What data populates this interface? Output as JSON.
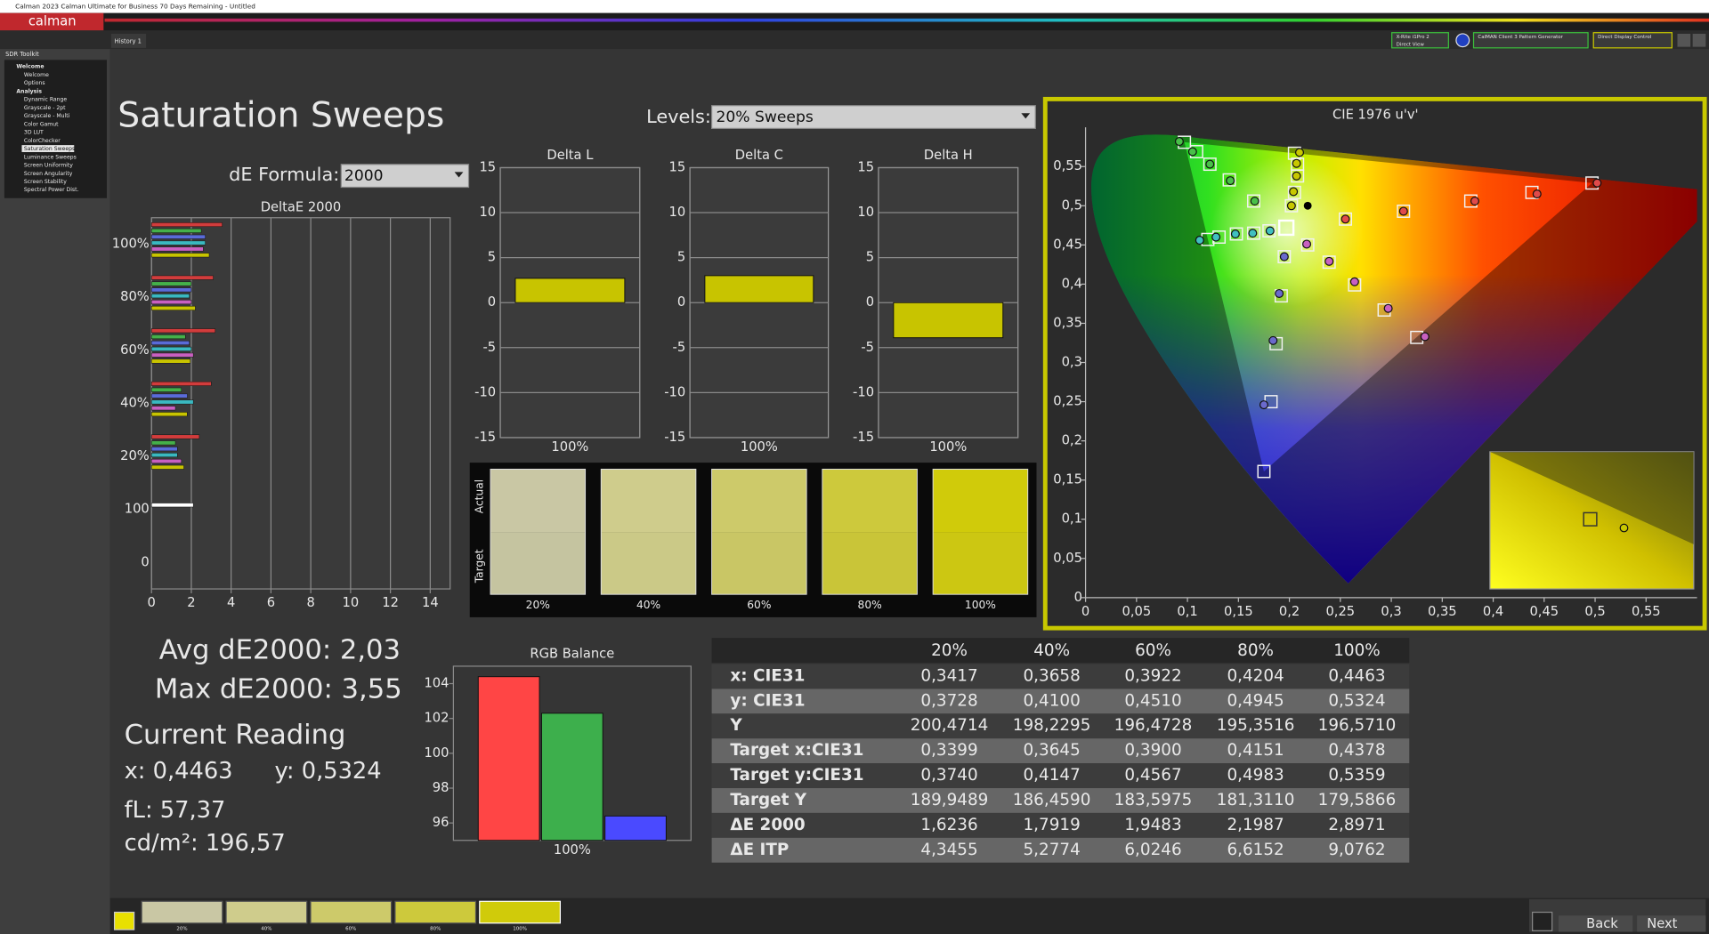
{
  "window": {
    "title": "Calman 2023 Calman Ultimate for Business 70 Days Remaining  - Untitled",
    "logo": "calman"
  },
  "toolbar": {
    "tab": "History 1",
    "meter": "X-Rite i1Pro 2",
    "meter_mode": "Direct View",
    "generator": "CalMAN Client 3 Pattern Generator",
    "display": "Direct Display Control"
  },
  "sidebar": {
    "title": "SDR Toolkit",
    "groups": [
      {
        "title": "Welcome",
        "items": [
          "Welcome",
          "Options"
        ]
      },
      {
        "title": "Analysis",
        "items": [
          "Dynamic Range",
          "Grayscale - 2pt",
          "Grayscale - Multi",
          "Color Gamut",
          "3D LUT",
          "ColorChecker",
          "Saturation Sweeps",
          "Luminance Sweeps",
          "Screen Uniformity",
          "Screen Angularity",
          "Screen Stability",
          "Spectral Power Dist."
        ]
      }
    ]
  },
  "page": {
    "title": "Saturation Sweeps",
    "levels_label": "Levels:",
    "levels_value": "20% Sweeps",
    "formula_label": "dE Formula:",
    "formula_value": "2000"
  },
  "deltae_chart": {
    "type": "bar",
    "orientation": "horizontal",
    "title": "DeltaE 2000",
    "categories": [
      "100%",
      "80%",
      "60%",
      "40%",
      "20%",
      "100",
      "0"
    ],
    "series": [
      {
        "color": "#d23c3c",
        "values": [
          3.55,
          3.1,
          3.2,
          3.0,
          2.4,
          null,
          null
        ]
      },
      {
        "color": "#45b04a",
        "values": [
          2.5,
          2.0,
          1.7,
          1.5,
          1.2,
          null,
          null
        ]
      },
      {
        "color": "#5a6bd8",
        "values": [
          2.7,
          2.0,
          1.9,
          1.8,
          1.3,
          null,
          null
        ]
      },
      {
        "color": "#3ab8c0",
        "values": [
          2.7,
          1.9,
          2.0,
          2.1,
          1.3,
          null,
          null
        ]
      },
      {
        "color": "#c860c0",
        "values": [
          2.6,
          2.0,
          2.1,
          1.2,
          1.5,
          null,
          null
        ]
      },
      {
        "color": "#c8c400",
        "values": [
          2.8971,
          2.1987,
          1.9483,
          1.7919,
          1.6236,
          null,
          null
        ]
      },
      {
        "color": "#ffffff",
        "values": [
          null,
          null,
          null,
          null,
          null,
          2.1,
          null
        ]
      }
    ],
    "xlim": [
      0,
      15
    ],
    "xticks": [
      0,
      2,
      4,
      6,
      8,
      10,
      12,
      14
    ],
    "grid": true
  },
  "delta_charts": [
    {
      "type": "bar",
      "title": "Delta L",
      "categories": [
        "100%"
      ],
      "values": [
        2.7
      ],
      "color": "#c8c400",
      "ylim": [
        -15,
        15
      ],
      "yticks": [
        -15,
        -10,
        -5,
        0,
        5,
        10,
        15
      ],
      "grid": true
    },
    {
      "type": "bar",
      "title": "Delta C",
      "categories": [
        "100%"
      ],
      "values": [
        3.0
      ],
      "color": "#c8c400",
      "ylim": [
        -15,
        15
      ],
      "yticks": [
        -15,
        -10,
        -5,
        0,
        5,
        10,
        15
      ],
      "grid": true
    },
    {
      "type": "bar",
      "title": "Delta H",
      "categories": [
        "100%"
      ],
      "values": [
        -3.9
      ],
      "color": "#c8c400",
      "ylim": [
        -15,
        15
      ],
      "yticks": [
        -15,
        -10,
        -5,
        0,
        5,
        10,
        15
      ],
      "grid": true
    }
  ],
  "swatches": {
    "row_labels": [
      "Actual",
      "Target"
    ],
    "categories": [
      "20%",
      "40%",
      "60%",
      "80%",
      "100%"
    ],
    "actual_colors": [
      "#c9c7a4",
      "#cfcc8c",
      "#cdca6a",
      "#cdc93c",
      "#d0cb0a"
    ],
    "target_colors": [
      "#c5c4a0",
      "#cbc987",
      "#c9c665",
      "#c9c538",
      "#ccc712"
    ]
  },
  "cie_chart": {
    "type": "scatter",
    "title": "CIE 1976 u'v'",
    "xlim": [
      0,
      0.6
    ],
    "ylim": [
      0,
      0.6
    ],
    "xticks": [
      0,
      {
        "value": 0.05,
        "label": "0,05"
      },
      {
        "value": 0.1,
        "label": "0,1"
      },
      {
        "value": 0.15,
        "label": "0,15"
      },
      {
        "value": 0.2,
        "label": "0,2"
      },
      {
        "value": 0.25,
        "label": "0,25"
      },
      {
        "value": 0.3,
        "label": "0,3"
      },
      {
        "value": 0.35,
        "label": "0,35"
      },
      {
        "value": 0.4,
        "label": "0,4"
      },
      {
        "value": 0.45,
        "label": "0,45"
      },
      {
        "value": 0.5,
        "label": "0,5"
      },
      {
        "value": 0.55,
        "label": "0,55"
      }
    ],
    "yticks": [
      0,
      {
        "value": 0.05,
        "label": "0,05"
      },
      {
        "value": 0.1,
        "label": "0,1"
      },
      {
        "value": 0.15,
        "label": "0,15"
      },
      {
        "value": 0.2,
        "label": "0,2"
      },
      {
        "value": 0.25,
        "label": "0,25"
      },
      {
        "value": 0.3,
        "label": "0,3"
      },
      {
        "value": 0.35,
        "label": "0,35"
      },
      {
        "value": 0.4,
        "label": "0,4"
      },
      {
        "value": 0.45,
        "label": "0,45"
      },
      {
        "value": 0.5,
        "label": "0,5"
      },
      {
        "value": 0.55,
        "label": "0,55"
      }
    ],
    "series": [
      {
        "color": "#e04a4a",
        "target_u": [
          0.255,
          0.312,
          0.378,
          0.438,
          0.497
        ],
        "target_v": [
          0.483,
          0.493,
          0.506,
          0.517,
          0.529
        ],
        "actual_u": [
          0.255,
          0.312,
          0.382,
          0.443,
          0.502
        ],
        "actual_v": [
          0.483,
          0.493,
          0.506,
          0.515,
          0.529
        ]
      },
      {
        "color": "#48c048",
        "target_u": [
          0.165,
          0.141,
          0.122,
          0.109,
          0.097
        ],
        "target_v": [
          0.506,
          0.533,
          0.553,
          0.569,
          0.581
        ],
        "actual_u": [
          0.166,
          0.142,
          0.122,
          0.105,
          0.092
        ],
        "actual_v": [
          0.506,
          0.532,
          0.553,
          0.569,
          0.582
        ]
      },
      {
        "color": "#6a6acc",
        "target_u": [
          0.195,
          0.192,
          0.187,
          0.182,
          0.175
        ],
        "target_v": [
          0.435,
          0.385,
          0.324,
          0.25,
          0.161
        ],
        "actual_u": [
          0.195,
          0.19,
          0.184,
          0.175,
          null
        ],
        "actual_v": [
          0.435,
          0.388,
          0.328,
          0.246,
          null
        ]
      },
      {
        "color": "#40c0c0",
        "target_u": [
          0.18,
          0.165,
          0.148,
          0.131,
          0.12
        ],
        "target_v": [
          0.468,
          0.465,
          0.464,
          0.46,
          0.457
        ],
        "actual_u": [
          0.181,
          0.164,
          0.147,
          0.128,
          0.112
        ],
        "actual_v": [
          0.468,
          0.465,
          0.464,
          0.46,
          0.456
        ]
      },
      {
        "color": "#c860c0",
        "target_u": [
          0.218,
          0.239,
          0.264,
          0.293,
          0.325
        ],
        "target_v": [
          0.45,
          0.428,
          0.399,
          0.367,
          0.332
        ],
        "actual_u": [
          0.217,
          0.239,
          0.264,
          0.297,
          0.333
        ],
        "actual_v": [
          0.451,
          0.429,
          0.403,
          0.369,
          0.333
        ]
      },
      {
        "color": "#c8c800",
        "target_u": [
          0.202,
          0.205,
          0.208,
          0.208,
          0.205
        ],
        "target_v": [
          0.5,
          0.517,
          0.538,
          0.553,
          0.567
        ],
        "actual_u": [
          0.202,
          0.204,
          0.207,
          0.207,
          0.21
        ],
        "actual_v": [
          0.5,
          0.518,
          0.538,
          0.554,
          0.568
        ]
      }
    ],
    "white_point": {
      "u": 0.197,
      "v": 0.472
    },
    "marker": {
      "u": 0.218,
      "v": 0.5
    }
  },
  "readings": {
    "avg": "Avg dE2000: 2,03",
    "max": "Max dE2000: 3,55",
    "heading": "Current Reading",
    "x": "x: 0,4463",
    "y": "y: 0,5324",
    "fl": "fL: 57,37",
    "cdm2": "cd/m²: 196,57"
  },
  "rgb_chart": {
    "type": "bar",
    "title": "RGB Balance",
    "categories": [
      "100%"
    ],
    "series": [
      {
        "color": "#ff4545",
        "values": [
          104.4
        ]
      },
      {
        "color": "#3daf4c",
        "values": [
          102.3
        ]
      },
      {
        "color": "#4a4aff",
        "values": [
          96.4
        ]
      }
    ],
    "ylim": [
      95,
      105
    ],
    "yticks": [
      96,
      98,
      100,
      102,
      104
    ],
    "grid": false
  },
  "table": {
    "columns": [
      "20%",
      "40%",
      "60%",
      "80%",
      "100%"
    ],
    "rows": [
      [
        "x: CIE31",
        "0,3417",
        "0,3658",
        "0,3922",
        "0,4204",
        "0,4463"
      ],
      [
        "y: CIE31",
        "0,3728",
        "0,4100",
        "0,4510",
        "0,4945",
        "0,5324"
      ],
      [
        "Y",
        "200,4714",
        "198,2295",
        "196,4728",
        "195,3516",
        "196,5710"
      ],
      [
        "Target x:CIE31",
        "0,3399",
        "0,3645",
        "0,3900",
        "0,4151",
        "0,4378"
      ],
      [
        "Target y:CIE31",
        "0,3740",
        "0,4147",
        "0,4567",
        "0,4983",
        "0,5359"
      ],
      [
        "Target Y",
        "189,9489",
        "186,4590",
        "183,5975",
        "181,3110",
        "179,5866"
      ],
      [
        "ΔE 2000",
        "1,6236",
        "1,7919",
        "1,9483",
        "2,1987",
        "2,8971"
      ],
      [
        "ΔE ITP",
        "4,3455",
        "5,2774",
        "6,0246",
        "6,6152",
        "9,0762"
      ]
    ]
  },
  "footer": {
    "swatch_labels": [
      "20%",
      "40%",
      "60%",
      "80%",
      "100%"
    ],
    "buttons": [
      "Back",
      "Next"
    ]
  }
}
